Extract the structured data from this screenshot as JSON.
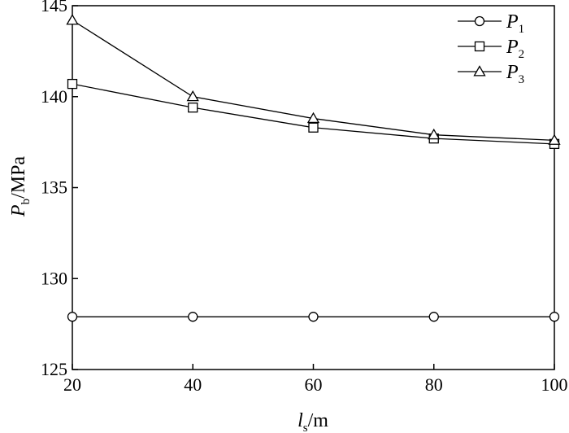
{
  "chart_data": {
    "type": "line",
    "x": [
      20,
      40,
      60,
      80,
      100
    ],
    "xlim": [
      20,
      100
    ],
    "ylim": [
      125,
      145
    ],
    "xticks": [
      20,
      40,
      60,
      80,
      100
    ],
    "yticks": [
      125,
      130,
      135,
      140,
      145
    ],
    "xlabel": {
      "main": "l",
      "sub": "s",
      "suffix": "/m"
    },
    "ylabel": {
      "main": "P",
      "sub": "b",
      "suffix": "/MPa"
    },
    "grid": false,
    "legend_position": "top-right",
    "series": [
      {
        "name": "P",
        "sub": "1",
        "marker": "circle",
        "values": [
          127.9,
          127.9,
          127.9,
          127.9,
          127.9
        ]
      },
      {
        "name": "P",
        "sub": "2",
        "marker": "square",
        "values": [
          140.7,
          139.4,
          138.3,
          137.7,
          137.4
        ]
      },
      {
        "name": "P",
        "sub": "3",
        "marker": "triangle",
        "values": [
          144.2,
          140.0,
          138.8,
          137.9,
          137.6
        ]
      }
    ]
  }
}
